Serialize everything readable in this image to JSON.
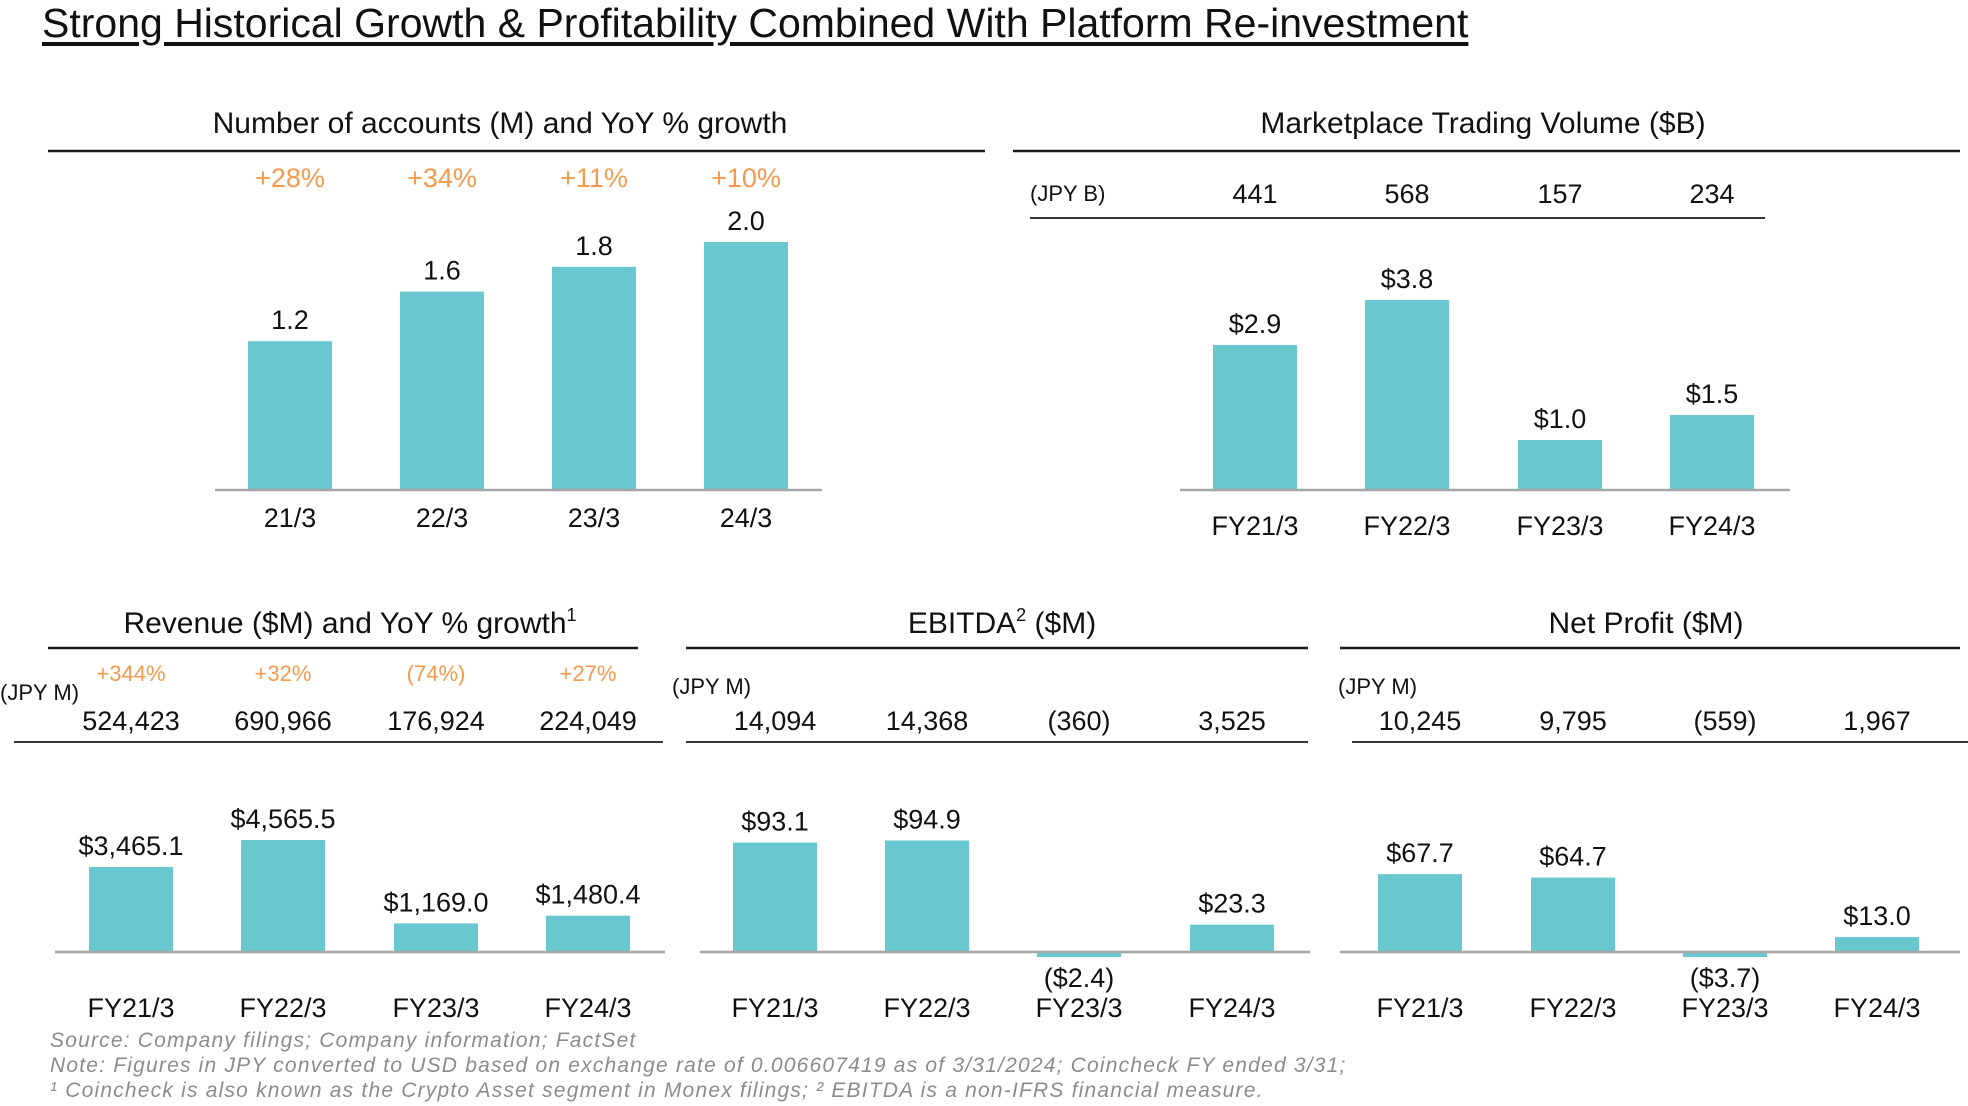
{
  "page": {
    "title": "Strong Historical Growth & Profitability Combined With Platform Re-investment"
  },
  "colors": {
    "bar": "#69c8cf",
    "growth": "#f39a4c",
    "text": "#111111",
    "axis": "#a6a6a6",
    "rule": "#1a1a1a",
    "footnote": "#8c8c8c"
  },
  "chart_data": [
    {
      "type": "bar",
      "title": "Number of accounts (M) and YoY % growth",
      "categories": [
        "21/3",
        "22/3",
        "23/3",
        "24/3"
      ],
      "values": [
        1.2,
        1.6,
        1.8,
        2.0
      ],
      "value_labels": [
        "1.2",
        "1.6",
        "1.8",
        "2.0"
      ],
      "growth_labels": [
        "+28%",
        "+34%",
        "+11%",
        "+10%"
      ],
      "ylim": [
        0,
        2.0
      ]
    },
    {
      "type": "bar",
      "title": "Marketplace Trading Volume ($B)",
      "categories": [
        "FY21/3",
        "FY22/3",
        "FY23/3",
        "FY24/3"
      ],
      "values": [
        2.9,
        3.8,
        1.0,
        1.5
      ],
      "value_labels": [
        "$2.9",
        "$3.8",
        "$1.0",
        "$1.5"
      ],
      "jpy_label": "(JPY B)",
      "jpy_values": [
        "441",
        "568",
        "157",
        "234"
      ],
      "ylim": [
        0,
        3.8
      ]
    },
    {
      "type": "bar",
      "title": "Revenue ($M) and YoY % growth",
      "title_sup": "1",
      "categories": [
        "FY21/3",
        "FY22/3",
        "FY23/3",
        "FY24/3"
      ],
      "values": [
        3465.1,
        4565.5,
        1169.0,
        1480.4
      ],
      "value_labels": [
        "$3,465.1",
        "$4,565.5",
        "$1,169.0",
        "$1,480.4"
      ],
      "growth_labels": [
        "+344%",
        "+32%",
        "(74%)",
        "+27%"
      ],
      "jpy_label": "(JPY M)",
      "jpy_values": [
        "524,423",
        "690,966",
        "176,924",
        "224,049"
      ],
      "ylim": [
        0,
        4565.5
      ]
    },
    {
      "type": "bar",
      "title": "EBITDA",
      "title_sup": "2",
      "title_suffix": "($M)",
      "categories": [
        "FY21/3",
        "FY22/3",
        "FY23/3",
        "FY24/3"
      ],
      "values": [
        93.1,
        94.9,
        -2.4,
        23.3
      ],
      "value_labels": [
        "$93.1",
        "$94.9",
        "($2.4)",
        "$23.3"
      ],
      "jpy_label": "(JPY M)",
      "jpy_values": [
        "14,094",
        "14,368",
        "(360)",
        "3,525"
      ],
      "ylim": [
        -2.4,
        94.9
      ]
    },
    {
      "type": "bar",
      "title": "Net Profit ($M)",
      "categories": [
        "FY21/3",
        "FY22/3",
        "FY23/3",
        "FY24/3"
      ],
      "values": [
        67.7,
        64.7,
        -3.7,
        13.0
      ],
      "value_labels": [
        "$67.7",
        "$64.7",
        "($3.7)",
        "$13.0"
      ],
      "jpy_label": "(JPY M)",
      "jpy_values": [
        "10,245",
        "9,795",
        "(559)",
        "1,967"
      ],
      "ylim": [
        -3.7,
        67.7
      ]
    }
  ],
  "footnotes": {
    "source": "Source: Company filings; Company information; FactSet",
    "note": "Note: Figures in JPY converted to USD based on exchange rate of 0.006607419 as of 3/31/2024; Coincheck FY ended 3/31;",
    "defs": "¹ Coincheck is also known as the Crypto Asset segment in Monex filings; ² EBITDA is a non-IFRS financial measure."
  }
}
